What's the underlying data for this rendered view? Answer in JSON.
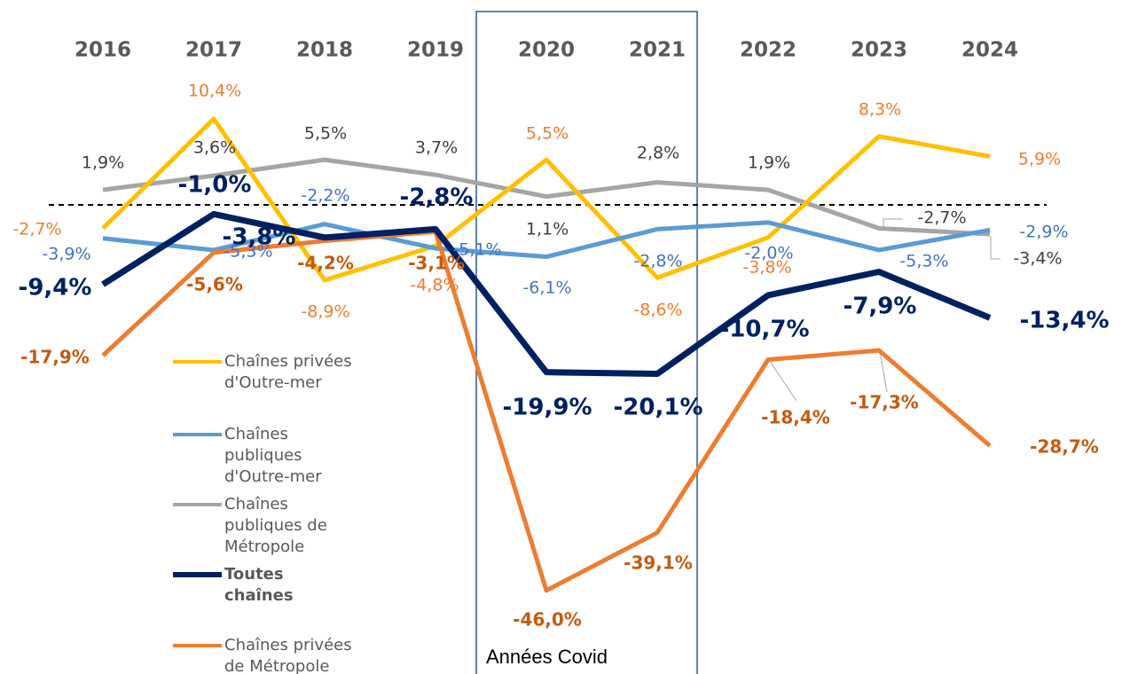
{
  "chart_data": {
    "type": "line",
    "categories": [
      "2016",
      "2017",
      "2018",
      "2019",
      "2020",
      "2021",
      "2022",
      "2023",
      "2024"
    ],
    "annotation": "Années Covid",
    "series": [
      {
        "name": "Chaînes privées d'Outre-mer",
        "color": "#FFC000",
        "label_color": "#ED7D31",
        "values": [
          -2.7,
          10.4,
          -8.9,
          -4.8,
          5.5,
          -8.6,
          -3.8,
          8.3,
          5.9
        ],
        "value_labels": [
          "-2,7%",
          "10,4%",
          "-8,9%",
          "-4,8%",
          "5,5%",
          "-8,6%",
          "-3,8%",
          "8,3%",
          "5,9%"
        ]
      },
      {
        "name": "Chaînes publiques d'Outre-mer",
        "color": "#5B9BD5",
        "label_color": "#4472C4",
        "values": [
          -3.9,
          -5.3,
          -2.2,
          -5.1,
          -6.1,
          -2.8,
          -2.0,
          -5.3,
          -2.9
        ],
        "value_labels": [
          "-3,9%",
          "-5,3%",
          "-2,2%",
          "-5,1%",
          "-6,1%",
          "-2,8%",
          "-2,0%",
          "-5,3%",
          "-2,9%"
        ]
      },
      {
        "name": "Chaînes publiques de Métropole",
        "color": "#A5A5A5",
        "label_color": "#404040",
        "values": [
          1.9,
          3.6,
          5.5,
          3.7,
          1.1,
          2.8,
          1.9,
          -2.7,
          -3.4
        ],
        "value_labels": [
          "1,9%",
          "3,6%",
          "5,5%",
          "3,7%",
          "1,1%",
          "2,8%",
          "1,9%",
          "-2,7%",
          "-3,4%"
        ]
      },
      {
        "name": "Toutes chaînes",
        "color": "#002060",
        "label_color": "#002060",
        "values": [
          -9.4,
          -1.0,
          -3.8,
          -2.8,
          -19.9,
          -20.1,
          -10.7,
          -7.9,
          -13.4
        ],
        "value_labels": [
          "-9,4%",
          "-1,0%",
          "-3,8%",
          "-2,8%",
          "-19,9%",
          "-20,1%",
          "-10,7%",
          "-7,9%",
          "-13,4%"
        ]
      },
      {
        "name": "Chaînes privées de Métropole",
        "color": "#ED7D31",
        "label_color": "#C55A11",
        "values": [
          -17.9,
          -5.6,
          -4.2,
          -3.1,
          -46.0,
          -39.1,
          -18.4,
          -17.3,
          -28.7
        ],
        "value_labels": [
          "-17,9%",
          "-5,6%",
          "-4,2%",
          "-3,1%",
          "-46,0%",
          "-39,1%",
          "-18,4%",
          "-17,3%",
          "-28,7%"
        ]
      }
    ]
  }
}
